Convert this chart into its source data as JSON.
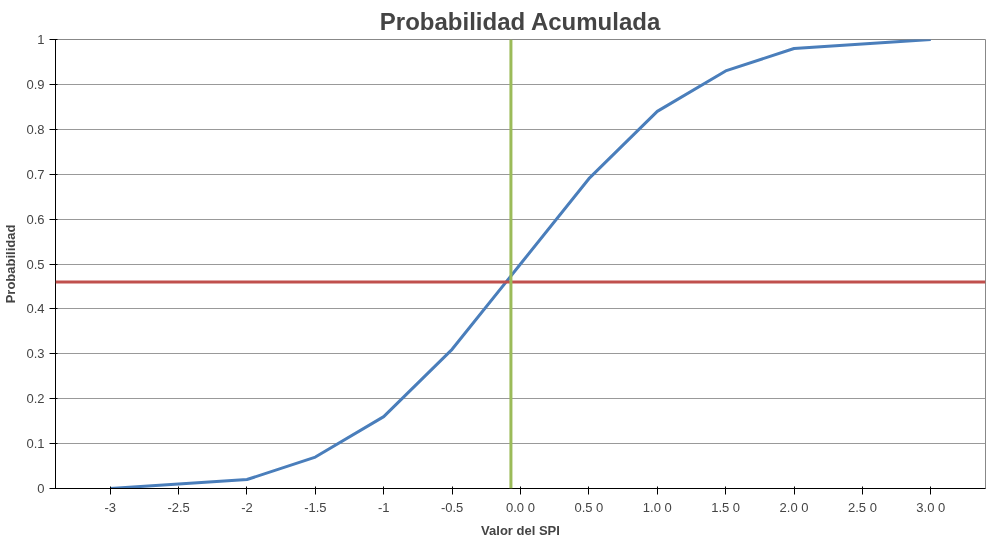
{
  "chart_data": {
    "type": "line",
    "title": "Probabilidad Acumulada",
    "xlabel": "Valor del SPI",
    "ylabel": "Probabilidad",
    "x": [
      -3,
      -2.5,
      -2,
      -1.5,
      -1,
      -0.5,
      0,
      0.5,
      1,
      1.5,
      2,
      2.5,
      3
    ],
    "series": [
      {
        "color": "#4a7ebb",
        "values": [
          0.0,
          0.01,
          0.02,
          0.07,
          0.16,
          0.31,
          0.5,
          0.69,
          0.84,
          0.93,
          0.98,
          0.99,
          1.0
        ]
      }
    ],
    "xlim": [
      -3.4,
      3.4
    ],
    "xticks": [
      -3,
      -2.5,
      -2,
      -1.5,
      -1,
      -0.5,
      {
        "value": 0,
        "label": "0.0 0"
      },
      {
        "value": 0.5,
        "label": "0.5 0"
      },
      {
        "value": 1,
        "label": "1.0 0"
      },
      {
        "value": 1.5,
        "label": "1.5 0"
      },
      {
        "value": 2,
        "label": "2.0 0"
      },
      {
        "value": 2.5,
        "label": "2.5 0"
      },
      {
        "value": 3,
        "label": "3.0 0"
      }
    ],
    "ylim": [
      0,
      1
    ],
    "yticks": [
      0,
      0.1,
      0.2,
      0.3,
      0.4,
      0.5,
      0.6,
      0.7,
      0.8,
      0.9,
      1
    ],
    "grid": "y",
    "marker": "none",
    "line_style": "solid",
    "ref_lines": [
      {
        "axis": "y",
        "value": 0.46,
        "label": null,
        "color": "#c0504d"
      },
      {
        "axis": "x",
        "value": -0.07,
        "label": null,
        "color": "#9bbb59"
      }
    ]
  }
}
